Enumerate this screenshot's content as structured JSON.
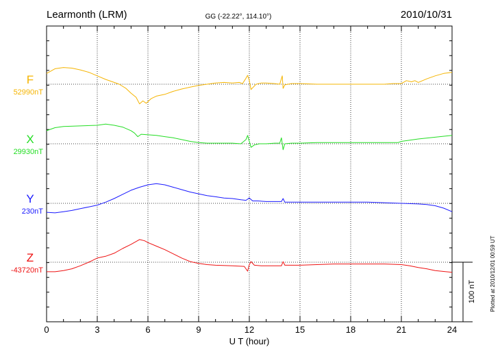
{
  "header": {
    "station": "Learmonth (LRM)",
    "coords": "GG (-22.22°, 114.10°)",
    "date": "2010/10/31"
  },
  "footer": {
    "plotted": "Plotted at 2010/12/01 00:59 UT"
  },
  "chart_data": {
    "type": "line",
    "title": "Learmonth (LRM)",
    "xlabel": "U T (hour)",
    "ylabel": "",
    "xlim": [
      0,
      24
    ],
    "xticks": [
      "0",
      "3",
      "6",
      "9",
      "12",
      "15",
      "18",
      "21",
      "24"
    ],
    "scale_label": "100 nT",
    "scale_nT": 100,
    "grid": true,
    "series": [
      {
        "name": "F",
        "baseline_label": "52990nT",
        "baseline": 52990,
        "color": "#f5b400",
        "points": [
          [
            0,
            53008
          ],
          [
            0.5,
            53016
          ],
          [
            1,
            53018
          ],
          [
            1.5,
            53017
          ],
          [
            2,
            53014
          ],
          [
            2.5,
            53010
          ],
          [
            3,
            53004
          ],
          [
            3.5,
            52998
          ],
          [
            4,
            52993
          ],
          [
            4.3,
            52990
          ],
          [
            4.7,
            52983
          ],
          [
            5,
            52975
          ],
          [
            5.3,
            52968
          ],
          [
            5.5,
            52957
          ],
          [
            5.7,
            52962
          ],
          [
            5.9,
            52958
          ],
          [
            6.2,
            52966
          ],
          [
            6.5,
            52970
          ],
          [
            7,
            52973
          ],
          [
            7.5,
            52978
          ],
          [
            8,
            52982
          ],
          [
            8.5,
            52985
          ],
          [
            9,
            52988
          ],
          [
            9.5,
            52990
          ],
          [
            10,
            52992
          ],
          [
            10.5,
            52993
          ],
          [
            11,
            52992
          ],
          [
            11.4,
            52993
          ],
          [
            11.6,
            52991
          ],
          [
            11.8,
            53000
          ],
          [
            11.9,
            53005
          ],
          [
            12,
            52996
          ],
          [
            12.1,
            52981
          ],
          [
            12.2,
            52984
          ],
          [
            12.4,
            52990
          ],
          [
            12.7,
            52992
          ],
          [
            13,
            52992
          ],
          [
            13.5,
            52991
          ],
          [
            13.8,
            52990
          ],
          [
            13.95,
            53004
          ],
          [
            14,
            52983
          ],
          [
            14.1,
            52989
          ],
          [
            14.5,
            52991
          ],
          [
            15,
            52991
          ],
          [
            16,
            52990
          ],
          [
            17,
            52990
          ],
          [
            18,
            52990
          ],
          [
            19,
            52990
          ],
          [
            20,
            52990
          ],
          [
            20.5,
            52991
          ],
          [
            21,
            52991
          ],
          [
            21.3,
            52996
          ],
          [
            21.6,
            52994
          ],
          [
            21.8,
            52996
          ],
          [
            22,
            52993
          ],
          [
            22.5,
            52999
          ],
          [
            23,
            53004
          ],
          [
            23.5,
            53008
          ],
          [
            24,
            53010
          ]
        ]
      },
      {
        "name": "X",
        "baseline_label": "29930nT",
        "baseline": 29930,
        "color": "#22dd22",
        "points": [
          [
            0,
            29952
          ],
          [
            0.5,
            29957
          ],
          [
            1,
            29959
          ],
          [
            2,
            29960
          ],
          [
            3,
            29961
          ],
          [
            3.5,
            29963
          ],
          [
            4,
            29961
          ],
          [
            4.5,
            29958
          ],
          [
            5,
            29952
          ],
          [
            5.2,
            29948
          ],
          [
            5.4,
            29942
          ],
          [
            5.6,
            29946
          ],
          [
            6,
            29945
          ],
          [
            6.5,
            29944
          ],
          [
            7,
            29942
          ],
          [
            7.5,
            29940
          ],
          [
            8,
            29937
          ],
          [
            8.5,
            29934
          ],
          [
            9,
            29932
          ],
          [
            9.5,
            29931
          ],
          [
            10,
            29931
          ],
          [
            11,
            29931
          ],
          [
            11.5,
            29930
          ],
          [
            11.8,
            29937
          ],
          [
            11.9,
            29944
          ],
          [
            12,
            29934
          ],
          [
            12.1,
            29924
          ],
          [
            12.3,
            29928
          ],
          [
            12.6,
            29930
          ],
          [
            13,
            29930
          ],
          [
            13.5,
            29931
          ],
          [
            13.8,
            29931
          ],
          [
            13.9,
            29940
          ],
          [
            14,
            29920
          ],
          [
            14.1,
            29930
          ],
          [
            14.5,
            29931
          ],
          [
            15,
            29931
          ],
          [
            16,
            29932
          ],
          [
            17,
            29932
          ],
          [
            18,
            29932
          ],
          [
            19,
            29932
          ],
          [
            20,
            29932
          ],
          [
            20.8,
            29932
          ],
          [
            21,
            29934
          ],
          [
            21.5,
            29936
          ],
          [
            22,
            29938
          ],
          [
            23,
            29941
          ],
          [
            24,
            29944
          ]
        ]
      },
      {
        "name": "Y",
        "baseline_label": "230nT",
        "baseline": 230,
        "color": "#1818ff",
        "points": [
          [
            0,
            215
          ],
          [
            0.5,
            214
          ],
          [
            1,
            216
          ],
          [
            1.5,
            218
          ],
          [
            2,
            221
          ],
          [
            2.5,
            224
          ],
          [
            3,
            227
          ],
          [
            3.5,
            232
          ],
          [
            4,
            238
          ],
          [
            4.5,
            245
          ],
          [
            5,
            252
          ],
          [
            5.5,
            257
          ],
          [
            6,
            261
          ],
          [
            6.5,
            263
          ],
          [
            7,
            261
          ],
          [
            7.5,
            257
          ],
          [
            8,
            253
          ],
          [
            8.5,
            249
          ],
          [
            9,
            246
          ],
          [
            9.5,
            243
          ],
          [
            10,
            241
          ],
          [
            10.5,
            239
          ],
          [
            11,
            238
          ],
          [
            11.5,
            236
          ],
          [
            11.8,
            235
          ],
          [
            12,
            239
          ],
          [
            12.2,
            234
          ],
          [
            12.5,
            234
          ],
          [
            13,
            233
          ],
          [
            13.5,
            233
          ],
          [
            13.9,
            233
          ],
          [
            14,
            238
          ],
          [
            14.1,
            232
          ],
          [
            14.5,
            232
          ],
          [
            15,
            232
          ],
          [
            16,
            232
          ],
          [
            17,
            232
          ],
          [
            18,
            232
          ],
          [
            19,
            232
          ],
          [
            20,
            231
          ],
          [
            21,
            230
          ],
          [
            22,
            229
          ],
          [
            22.5,
            228
          ],
          [
            23,
            226
          ],
          [
            23.5,
            222
          ],
          [
            24,
            216
          ]
        ]
      },
      {
        "name": "Z",
        "baseline_label": "-43720nT",
        "baseline": -43720,
        "color": "#ee1111",
        "points": [
          [
            0,
            -43736
          ],
          [
            0.5,
            -43736
          ],
          [
            1,
            -43734
          ],
          [
            1.5,
            -43731
          ],
          [
            2,
            -43726
          ],
          [
            2.5,
            -43720
          ],
          [
            3,
            -43713
          ],
          [
            3.5,
            -43710
          ],
          [
            4,
            -43705
          ],
          [
            4.5,
            -43697
          ],
          [
            5,
            -43690
          ],
          [
            5.5,
            -43682
          ],
          [
            5.8,
            -43684
          ],
          [
            6,
            -43687
          ],
          [
            6.5,
            -43693
          ],
          [
            7,
            -43699
          ],
          [
            7.5,
            -43706
          ],
          [
            8,
            -43713
          ],
          [
            8.5,
            -43719
          ],
          [
            9,
            -43722
          ],
          [
            9.5,
            -43724
          ],
          [
            10,
            -43725
          ],
          [
            11,
            -43726
          ],
          [
            11.7,
            -43727
          ],
          [
            11.9,
            -43735
          ],
          [
            12,
            -43724
          ],
          [
            12.1,
            -43719
          ],
          [
            12.3,
            -43725
          ],
          [
            12.7,
            -43726
          ],
          [
            13,
            -43726
          ],
          [
            13.5,
            -43726
          ],
          [
            13.9,
            -43726
          ],
          [
            14,
            -43719
          ],
          [
            14.1,
            -43725
          ],
          [
            14.5,
            -43725
          ],
          [
            15,
            -43725
          ],
          [
            16,
            -43724
          ],
          [
            17,
            -43723
          ],
          [
            18,
            -43723
          ],
          [
            19,
            -43723
          ],
          [
            20,
            -43723
          ],
          [
            21,
            -43724
          ],
          [
            21.5,
            -43726
          ],
          [
            22,
            -43729
          ],
          [
            22.5,
            -43731
          ],
          [
            23,
            -43734
          ],
          [
            24,
            -43737
          ]
        ]
      }
    ]
  }
}
